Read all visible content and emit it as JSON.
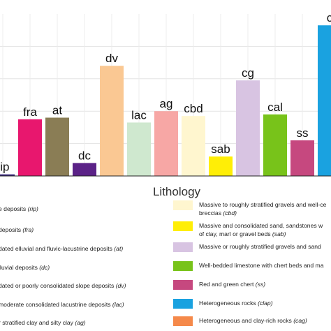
{
  "chart_data": {
    "type": "bar",
    "xlabel": "Lithology",
    "ylabel": "",
    "ylim": [
      0,
      100
    ],
    "grid": true,
    "categories": [
      "rip",
      "fra",
      "at",
      "dc",
      "dv",
      "lac",
      "ag",
      "cbd",
      "sab",
      "cg",
      "cal",
      "ss",
      "clap"
    ],
    "visible_labels": [
      "rip",
      "fra",
      "at",
      "dc",
      "dv",
      "lac",
      "ag",
      "cbd",
      "sab",
      "cg",
      "cal",
      "ss",
      "c"
    ],
    "values": [
      1,
      35,
      36,
      8,
      68,
      33,
      40,
      37,
      12,
      59,
      38,
      22,
      93
    ],
    "colors": [
      "#3b2a80",
      "#e8176e",
      "#8a7d55",
      "#5b2287",
      "#fac893",
      "#cfe8cf",
      "#f7a7a5",
      "#fff6cf",
      "#ffee06",
      "#d8c4e2",
      "#78c31a",
      "#c6487f",
      "#1aa2e0"
    ],
    "legend": {
      "placement": "bottom",
      "left": [
        {
          "prefix": "e deposits ",
          "abbr": "(rip)",
          "color": ""
        },
        {
          "prefix": "deposits ",
          "abbr": "(fra)",
          "color": ""
        },
        {
          "prefix": "dated elluvial and fluvic-lacustrine deposits ",
          "abbr": "(at)",
          "color": ""
        },
        {
          "prefix": "lluvial deposits ",
          "abbr": "(dc)",
          "color": ""
        },
        {
          "prefix": "dated or poorly consolidated slope deposits ",
          "abbr": "(dv)",
          "color": ""
        },
        {
          "prefix": "moderate consolidated lacustrine deposits ",
          "abbr": "(lac)",
          "color": ""
        },
        {
          "prefix": "r stratified clay and silty clay ",
          "abbr": "(ag)",
          "color": ""
        }
      ],
      "right": [
        {
          "line1": "Massive to roughly stratified gravels and well-ce",
          "line2": "breccias ",
          "abbr": "(cbd)",
          "color": "#fff6cf"
        },
        {
          "line1": "Massive and consolidated sand, sandstones w",
          "line2": "of clay, marl or gravel beds ",
          "abbr": "(sab)",
          "color": "#ffee06"
        },
        {
          "line1": "Massive or roughly stratified gravels and sand",
          "line2": "",
          "abbr": "",
          "color": "#d8c4e2"
        },
        {
          "line1": "Well-bedded limestone with chert beds and ma",
          "line2": "",
          "abbr": "",
          "color": "#78c31a"
        },
        {
          "line1": "Red and green chert ",
          "line2": "",
          "abbr": "(ss)",
          "color": "#c6487f"
        },
        {
          "line1": "Heterogeneous rocks ",
          "line2": "",
          "abbr": "(clap)",
          "color": "#1aa2e0"
        },
        {
          "line1": "Heterogeneous and clay-rich rocks ",
          "line2": "",
          "abbr": "(cag)",
          "color": "#f5894a"
        }
      ]
    }
  }
}
